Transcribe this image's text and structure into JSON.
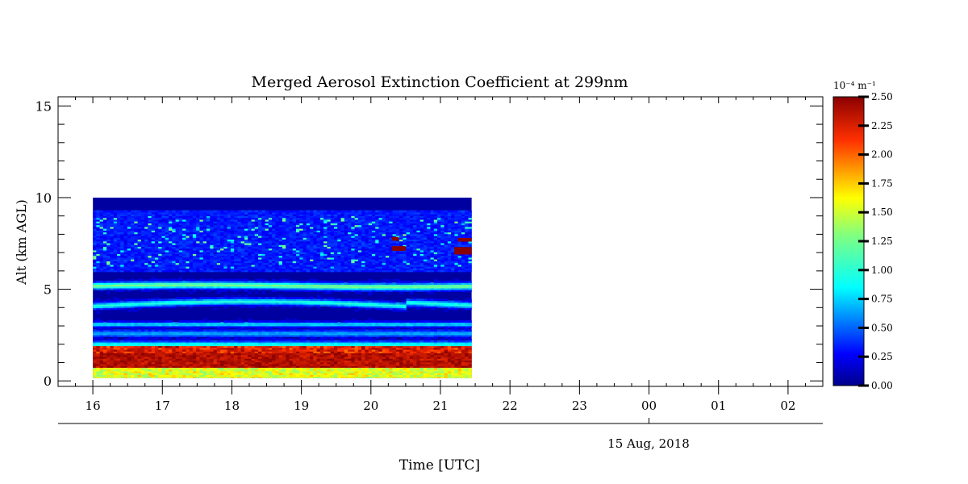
{
  "chart_data": {
    "type": "heatmap",
    "title": "Merged Aerosol Extinction Coefficient at 299nm",
    "xlabel": "Time [UTC]",
    "ylabel": "Alt (km AGL)",
    "x_ticks": [
      "16",
      "17",
      "18",
      "19",
      "20",
      "21",
      "22",
      "23",
      "00",
      "01",
      "02"
    ],
    "x_range_hours": [
      15.5,
      26.5
    ],
    "x_secondary_label": "15 Aug, 2018",
    "x_secondary_tick": "00",
    "y_ticks": [
      "0",
      "5",
      "10",
      "15"
    ],
    "y_range": [
      -0.3,
      15.5
    ],
    "data_extent": {
      "time_start": 16.0,
      "time_end": 21.45,
      "alt_min": 0.15,
      "alt_max": 10.0
    },
    "colorbar": {
      "unit_label": "10⁻⁴ m⁻¹",
      "range": [
        0,
        2.5
      ],
      "ticks": [
        "0.00",
        "0.25",
        "0.50",
        "0.75",
        "1.00",
        "1.25",
        "1.50",
        "1.75",
        "2.00",
        "2.25",
        "2.50"
      ],
      "colormap": "jet"
    },
    "layers": [
      {
        "name": "surface boundary layer",
        "alt_range": [
          0.15,
          0.7
        ],
        "value": 1.3
      },
      {
        "name": "polluted mixed layer",
        "alt_range": [
          0.7,
          1.9
        ],
        "value": 2.3
      },
      {
        "name": "layer near 2.6 km",
        "alt_range": [
          2.4,
          2.8
        ],
        "value": 0.9
      },
      {
        "name": "layer near 3.1 km",
        "alt_range": [
          2.95,
          3.25
        ],
        "value": 0.95
      },
      {
        "name": "layer near 4.1 km",
        "alt_range": [
          3.9,
          4.4
        ],
        "value": 1.05
      },
      {
        "name": "layer near 5.2 km",
        "alt_range": [
          5.0,
          5.45
        ],
        "value": 1.35
      },
      {
        "name": "cloud patches",
        "alt_range": [
          6.8,
          8.0
        ],
        "value": 2.5
      }
    ]
  },
  "colors": {
    "background": "#ffffff",
    "axis": "#000000",
    "plot_background": "#00008b"
  }
}
